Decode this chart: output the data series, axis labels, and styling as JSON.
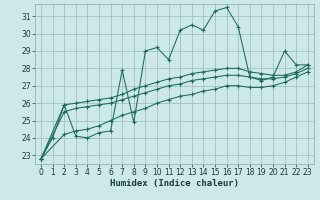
{
  "xlabel": "Humidex (Indice chaleur)",
  "bg_color": "#cce8e8",
  "grid_color": "#99bbbb",
  "line_color": "#1a6b5a",
  "xlim": [
    -0.5,
    23.5
  ],
  "ylim": [
    22.5,
    31.7
  ],
  "yticks": [
    23,
    24,
    25,
    26,
    27,
    28,
    29,
    30,
    31
  ],
  "xticks": [
    0,
    1,
    2,
    3,
    4,
    5,
    6,
    7,
    8,
    9,
    10,
    11,
    12,
    13,
    14,
    15,
    16,
    17,
    18,
    19,
    20,
    21,
    22,
    23
  ],
  "series": [
    {
      "x": [
        0,
        1,
        2,
        3,
        4,
        5,
        6,
        7,
        8,
        9,
        10,
        11,
        12,
        13,
        14,
        15,
        16,
        17,
        18,
        19,
        20,
        21,
        22,
        23
      ],
      "y": [
        22.8,
        24.0,
        25.9,
        24.1,
        24.0,
        24.3,
        24.4,
        27.9,
        24.9,
        29.0,
        29.2,
        28.5,
        30.2,
        30.5,
        30.2,
        31.3,
        31.5,
        30.4,
        27.5,
        27.3,
        27.5,
        29.0,
        28.2,
        28.2
      ]
    },
    {
      "x": [
        0,
        2,
        3,
        4,
        5,
        6,
        7,
        8,
        9,
        10,
        11,
        12,
        13,
        14,
        15,
        16,
        17,
        18,
        19,
        20,
        21,
        22,
        23
      ],
      "y": [
        22.8,
        25.9,
        26.0,
        26.1,
        26.2,
        26.3,
        26.5,
        26.8,
        27.0,
        27.2,
        27.4,
        27.5,
        27.7,
        27.8,
        27.9,
        28.0,
        28.0,
        27.8,
        27.7,
        27.6,
        27.6,
        27.8,
        28.2
      ]
    },
    {
      "x": [
        0,
        2,
        3,
        4,
        5,
        6,
        7,
        8,
        9,
        10,
        11,
        12,
        13,
        14,
        15,
        16,
        17,
        18,
        19,
        20,
        21,
        22,
        23
      ],
      "y": [
        22.8,
        25.5,
        25.7,
        25.8,
        25.9,
        26.0,
        26.2,
        26.4,
        26.6,
        26.8,
        27.0,
        27.1,
        27.3,
        27.4,
        27.5,
        27.6,
        27.6,
        27.5,
        27.4,
        27.4,
        27.5,
        27.7,
        28.0
      ]
    },
    {
      "x": [
        0,
        2,
        3,
        4,
        5,
        6,
        7,
        8,
        9,
        10,
        11,
        12,
        13,
        14,
        15,
        16,
        17,
        18,
        19,
        20,
        21,
        22,
        23
      ],
      "y": [
        22.8,
        24.2,
        24.4,
        24.5,
        24.7,
        25.0,
        25.3,
        25.5,
        25.7,
        26.0,
        26.2,
        26.4,
        26.5,
        26.7,
        26.8,
        27.0,
        27.0,
        26.9,
        26.9,
        27.0,
        27.2,
        27.5,
        27.8
      ]
    }
  ]
}
